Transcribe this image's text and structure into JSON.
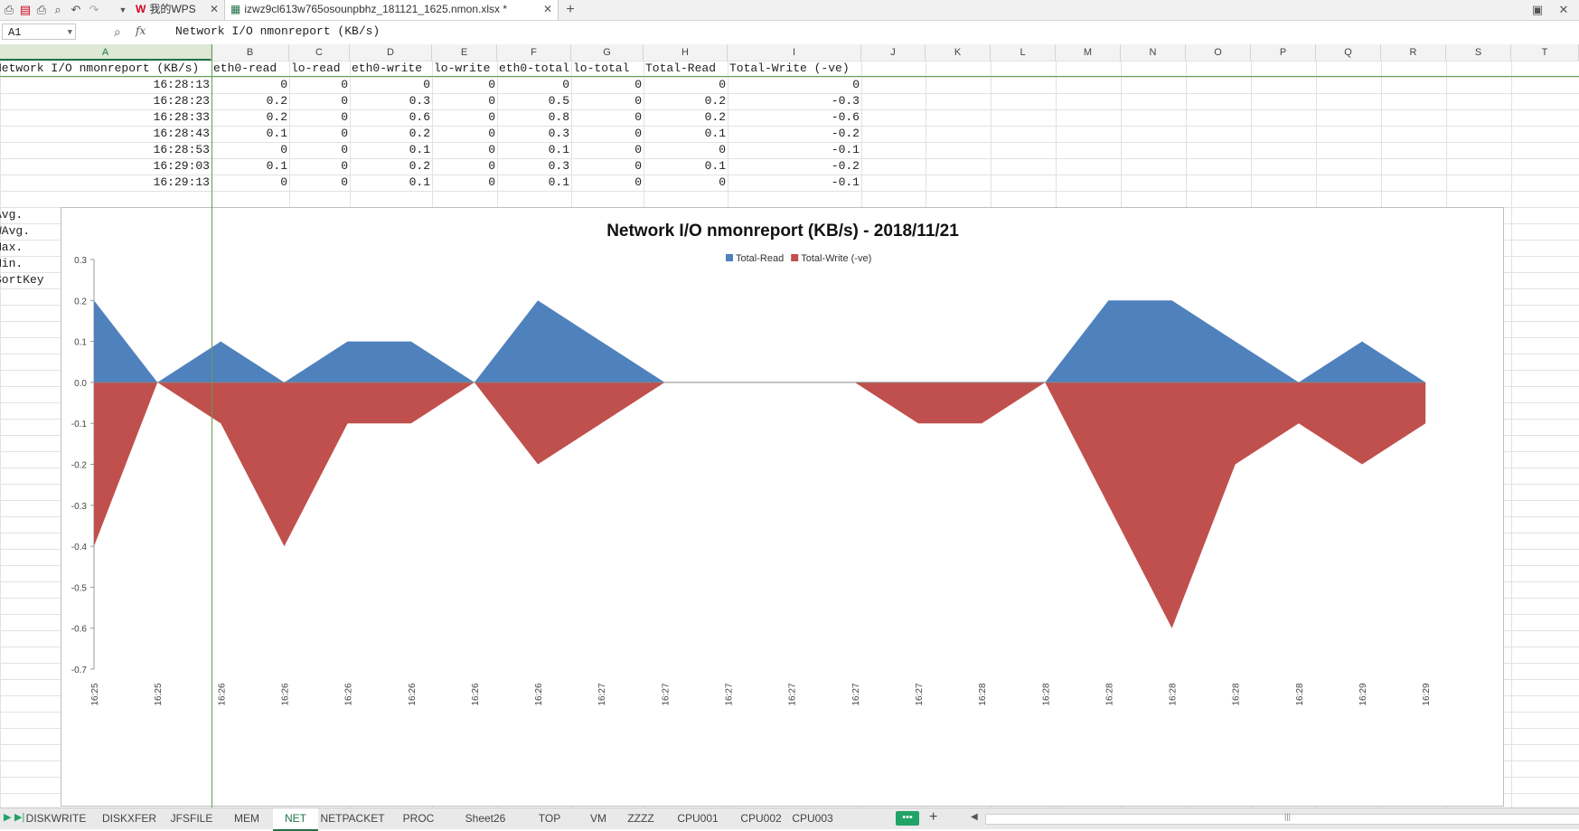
{
  "toolbar": {
    "wps_label": "我的WPS",
    "file_tab": "izwz9cl613w765osounpbhz_181121_1625.nmon.xlsx *"
  },
  "formula_bar": {
    "cell_ref": "A1",
    "fx": "fx",
    "content": "Network I/O nmonreport (KB/s)"
  },
  "columns": [
    "A",
    "B",
    "C",
    "D",
    "E",
    "F",
    "G",
    "H",
    "I",
    "J",
    "K",
    "L",
    "M",
    "N",
    "O",
    "P",
    "Q",
    "R",
    "S",
    "T"
  ],
  "sheet": {
    "header": [
      "Network I/O nmonreport (KB/s)",
      "eth0-read",
      "lo-read",
      "eth0-write",
      "lo-write",
      "eth0-total",
      "lo-total",
      "Total-Read",
      "Total-Write (-ve)"
    ],
    "rows": [
      [
        "16:28:13",
        "0",
        "0",
        "0",
        "0",
        "0",
        "0",
        "0",
        "0"
      ],
      [
        "16:28:23",
        "0.2",
        "0",
        "0.3",
        "0",
        "0.5",
        "0",
        "0.2",
        "-0.3"
      ],
      [
        "16:28:33",
        "0.2",
        "0",
        "0.6",
        "0",
        "0.8",
        "0",
        "0.2",
        "-0.6"
      ],
      [
        "16:28:43",
        "0.1",
        "0",
        "0.2",
        "0",
        "0.3",
        "0",
        "0.1",
        "-0.2"
      ],
      [
        "16:28:53",
        "0",
        "0",
        "0.1",
        "0",
        "0.1",
        "0",
        "0",
        "-0.1"
      ],
      [
        "16:29:03",
        "0.1",
        "0",
        "0.2",
        "0",
        "0.3",
        "0",
        "0.1",
        "-0.2"
      ],
      [
        "16:29:13",
        "0",
        "0",
        "0.1",
        "0",
        "0.1",
        "0",
        "0",
        "-0.1"
      ]
    ],
    "stat_labels": [
      "Avg.",
      "WAvg.",
      "Max.",
      "Min.",
      "SortKey"
    ]
  },
  "chart_data": {
    "type": "area",
    "title": "Network I/O nmonreport (KB/s) - 2018/11/21",
    "categories": [
      "16:25",
      "16:25",
      "16:26",
      "16:26",
      "16:26",
      "16:26",
      "16:26",
      "16:26",
      "16:27",
      "16:27",
      "16:27",
      "16:27",
      "16:27",
      "16:27",
      "16:28",
      "16:28",
      "16:28",
      "16:28",
      "16:28",
      "16:28",
      "16:29",
      "16:29"
    ],
    "series": [
      {
        "name": "Total-Read",
        "color": "#4f81bd",
        "values": [
          0.2,
          0,
          0.1,
          0,
          0.1,
          0.1,
          0,
          0.2,
          0.1,
          0,
          0,
          0,
          0,
          0,
          0,
          0,
          0.2,
          0.2,
          0.1,
          0,
          0.1,
          0
        ]
      },
      {
        "name": "Total-Write (-ve)",
        "color": "#c0504d",
        "values": [
          -0.4,
          0,
          -0.1,
          -0.4,
          -0.1,
          -0.1,
          0,
          -0.2,
          -0.1,
          0,
          0,
          0,
          0,
          -0.1,
          -0.1,
          0,
          -0.3,
          -0.6,
          -0.2,
          -0.1,
          -0.2,
          -0.1
        ]
      }
    ],
    "yticks": [
      "0.3",
      "0.2",
      "0.1",
      "0.0",
      "-0.1",
      "-0.2",
      "-0.3",
      "-0.4",
      "-0.5",
      "-0.6",
      "-0.7"
    ],
    "ylim": [
      -0.7,
      0.3
    ],
    "legend": "top-center"
  },
  "sheet_tabs": [
    "DISKWRITE",
    "DISKXFER",
    "JFSFILE",
    "MEM",
    "NET",
    "NETPACKET",
    "PROC",
    "Sheet26",
    "TOP",
    "VM",
    "ZZZZ",
    "CPU001",
    "CPU002",
    "CPU003"
  ],
  "active_tab": "NET",
  "more_tabs": "•••",
  "add_tab": "+"
}
